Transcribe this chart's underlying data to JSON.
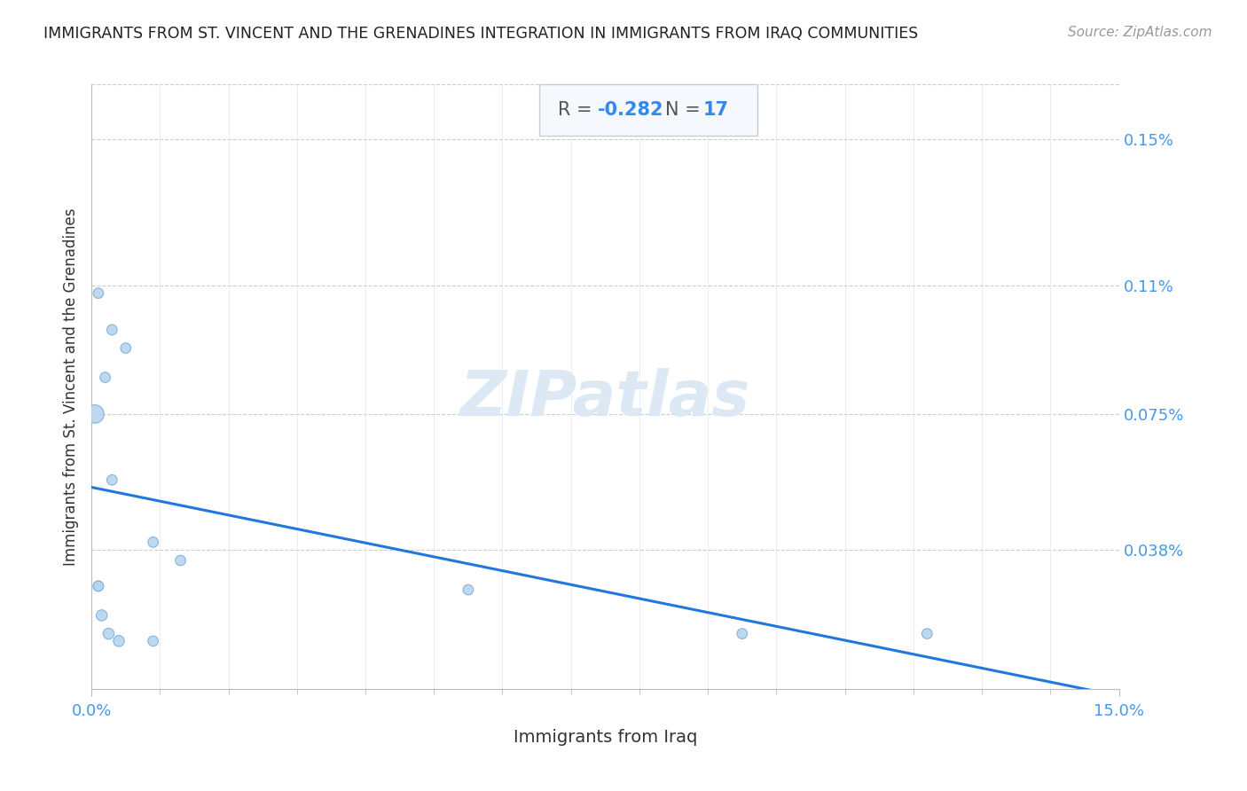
{
  "title": "IMMIGRANTS FROM ST. VINCENT AND THE GRENADINES INTEGRATION IN IMMIGRANTS FROM IRAQ COMMUNITIES",
  "source": "Source: ZipAtlas.com",
  "xlabel": "Immigrants from Iraq",
  "ylabel": "Immigrants from St. Vincent and the Grenadines",
  "R": -0.282,
  "N": 17,
  "xlim": [
    0,
    0.15
  ],
  "ylim": [
    0,
    0.00165
  ],
  "scatter_x": [
    0.001,
    0.003,
    0.005,
    0.002,
    0.0005,
    0.003,
    0.009,
    0.013,
    0.001,
    0.001,
    0.0015,
    0.0025,
    0.004,
    0.009,
    0.055,
    0.095,
    0.122
  ],
  "scatter_y": [
    0.00108,
    0.00098,
    0.00093,
    0.00085,
    0.00075,
    0.00057,
    0.0004,
    0.00035,
    0.00028,
    0.00028,
    0.0002,
    0.00015,
    0.00013,
    0.00013,
    0.00027,
    0.00015,
    0.00015
  ],
  "scatter_sizes": [
    70,
    70,
    70,
    70,
    220,
    70,
    70,
    70,
    70,
    70,
    80,
    80,
    80,
    70,
    70,
    70,
    70
  ],
  "scatter_color": "#b8d4ee",
  "scatter_edge_color": "#7ab0d8",
  "line_color": "#2277dd",
  "line_intercept": 0.00055,
  "line_slope": -0.0038,
  "y_tick_values_right": [
    0.0015,
    0.0011,
    0.00075,
    0.00038
  ],
  "y_tick_labels_right": [
    "0.15%",
    "0.11%",
    "0.075%",
    "0.038%"
  ],
  "x_tick_positions": [
    0.0,
    0.15
  ],
  "x_tick_labels": [
    "0.0%",
    "15.0%"
  ],
  "x_minor_ticks": [
    0.01,
    0.02,
    0.03,
    0.04,
    0.05,
    0.06,
    0.07,
    0.08,
    0.09,
    0.1,
    0.11,
    0.12,
    0.13,
    0.14
  ],
  "grid_color": "#cccccc",
  "title_color": "#222222",
  "axis_label_color": "#333333",
  "tick_color": "#4499ee",
  "stat_box_facecolor": "#f5f8fd",
  "stat_box_edgecolor": "#cccccc",
  "stat_R_label_color": "#555555",
  "stat_R_value_color": "#3388ee",
  "stat_N_label_color": "#555555",
  "stat_N_value_color": "#3388ee",
  "watermark_color": "#dde8f5"
}
